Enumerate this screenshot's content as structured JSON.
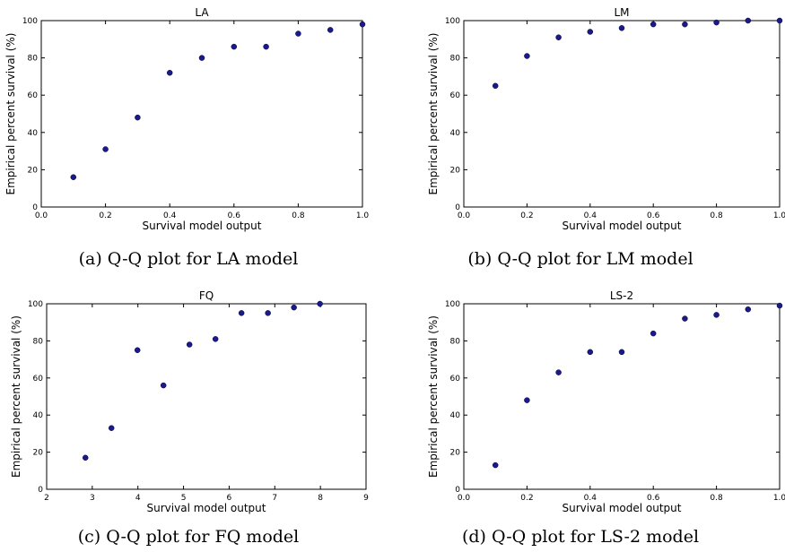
{
  "figure": {
    "captions": [
      "(a) Q-Q plot for LA model",
      "(b) Q-Q plot for LM model",
      "(c) Q-Q plot for FQ model",
      "(d) Q-Q plot for LS-2 model"
    ]
  },
  "colors": {
    "marker": "#1a1a8c",
    "axes": "#000000",
    "text": "#000000"
  },
  "chart_data": [
    {
      "type": "scatter",
      "title": "LA",
      "xlabel": "Survival model output",
      "ylabel": "Empirical percent survival (%)",
      "xlim": [
        0.0,
        1.0
      ],
      "ylim": [
        0,
        100
      ],
      "xticks": [
        0.0,
        0.2,
        0.4,
        0.6,
        0.8,
        1.0
      ],
      "xtick_labels": [
        "0.0",
        "0.2",
        "0.4",
        "0.6",
        "0.8",
        "1.0"
      ],
      "yticks": [
        0,
        20,
        40,
        60,
        80,
        100
      ],
      "ytick_labels": [
        "0",
        "20",
        "40",
        "60",
        "80",
        "100"
      ],
      "grid": false,
      "x": [
        0.1,
        0.2,
        0.3,
        0.4,
        0.5,
        0.6,
        0.7,
        0.8,
        0.9,
        1.0
      ],
      "y": [
        16,
        31,
        48,
        72,
        80,
        86,
        86,
        93,
        95,
        98
      ]
    },
    {
      "type": "scatter",
      "title": "LM",
      "xlabel": "Survival model output",
      "ylabel": "Empirical percent survival (%)",
      "xlim": [
        0.0,
        1.0
      ],
      "ylim": [
        0,
        100
      ],
      "xticks": [
        0.0,
        0.2,
        0.4,
        0.6,
        0.8,
        1.0
      ],
      "xtick_labels": [
        "0.0",
        "0.2",
        "0.4",
        "0.6",
        "0.8",
        "1.0"
      ],
      "yticks": [
        0,
        20,
        40,
        60,
        80,
        100
      ],
      "ytick_labels": [
        "0",
        "20",
        "40",
        "60",
        "80",
        "100"
      ],
      "grid": false,
      "x": [
        0.1,
        0.2,
        0.3,
        0.4,
        0.5,
        0.6,
        0.7,
        0.8,
        0.9,
        1.0
      ],
      "y": [
        65,
        81,
        91,
        94,
        96,
        98,
        98,
        99,
        100,
        100
      ]
    },
    {
      "type": "scatter",
      "title": "FQ",
      "xlabel": "Survival model output",
      "ylabel": "Empirical percent survival (%)",
      "xlim": [
        2,
        9
      ],
      "ylim": [
        0,
        100
      ],
      "xticks": [
        2,
        3,
        4,
        5,
        6,
        7,
        8,
        9
      ],
      "xtick_labels": [
        "2",
        "3",
        "4",
        "5",
        "6",
        "7",
        "8",
        "9"
      ],
      "yticks": [
        0,
        20,
        40,
        60,
        80,
        100
      ],
      "ytick_labels": [
        "0",
        "20",
        "40",
        "60",
        "80",
        "100"
      ],
      "grid": false,
      "x": [
        2.85,
        3.42,
        3.99,
        4.56,
        5.13,
        5.7,
        6.27,
        6.85,
        7.42,
        7.99
      ],
      "y": [
        17,
        33,
        75,
        56,
        78,
        81,
        95,
        95,
        98,
        100
      ]
    },
    {
      "type": "scatter",
      "title": "LS-2",
      "xlabel": "Survival model output",
      "ylabel": "Empirical percent survival (%)",
      "xlim": [
        0.0,
        1.0
      ],
      "ylim": [
        0,
        100
      ],
      "xticks": [
        0.0,
        0.2,
        0.4,
        0.6,
        0.8,
        1.0
      ],
      "xtick_labels": [
        "0.0",
        "0.2",
        "0.4",
        "0.6",
        "0.8",
        "1.0"
      ],
      "yticks": [
        0,
        20,
        40,
        60,
        80,
        100
      ],
      "ytick_labels": [
        "0",
        "20",
        "40",
        "60",
        "80",
        "100"
      ],
      "grid": false,
      "x": [
        0.1,
        0.2,
        0.3,
        0.4,
        0.5,
        0.6,
        0.7,
        0.8,
        0.9,
        1.0
      ],
      "y": [
        13,
        48,
        63,
        74,
        74,
        84,
        92,
        94,
        97,
        99
      ]
    }
  ]
}
